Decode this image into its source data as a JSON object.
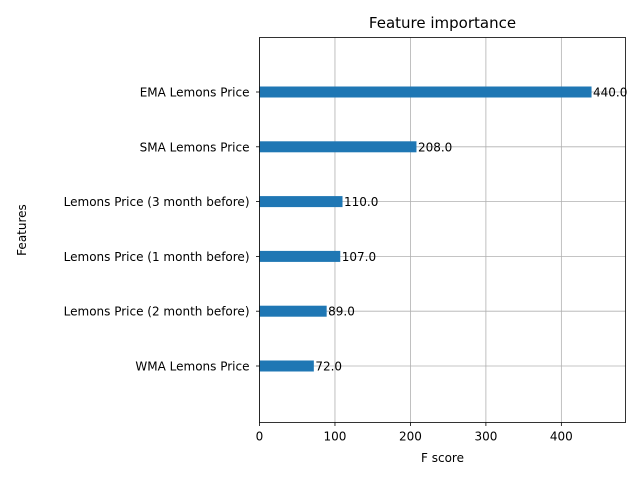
{
  "chart_data": {
    "type": "bar",
    "orientation": "horizontal",
    "title": "Feature importance",
    "xlabel": "F score",
    "ylabel": "Features",
    "grid": true,
    "xlim": [
      0,
      485
    ],
    "xticks": [
      0,
      100,
      200,
      300,
      400
    ],
    "categories": [
      "WMA Lemons Price",
      "Lemons Price (2 month before)",
      "Lemons Price (1 month before)",
      "Lemons Price (3 month before)",
      "SMA Lemons Price",
      "EMA Lemons Price"
    ],
    "values": [
      72.0,
      89.0,
      107.0,
      110.0,
      208.0,
      440.0
    ],
    "data_labels": [
      "72.0",
      "89.0",
      "107.0",
      "110.0",
      "208.0",
      "440.0"
    ],
    "bar_color": "#1f77b4"
  }
}
